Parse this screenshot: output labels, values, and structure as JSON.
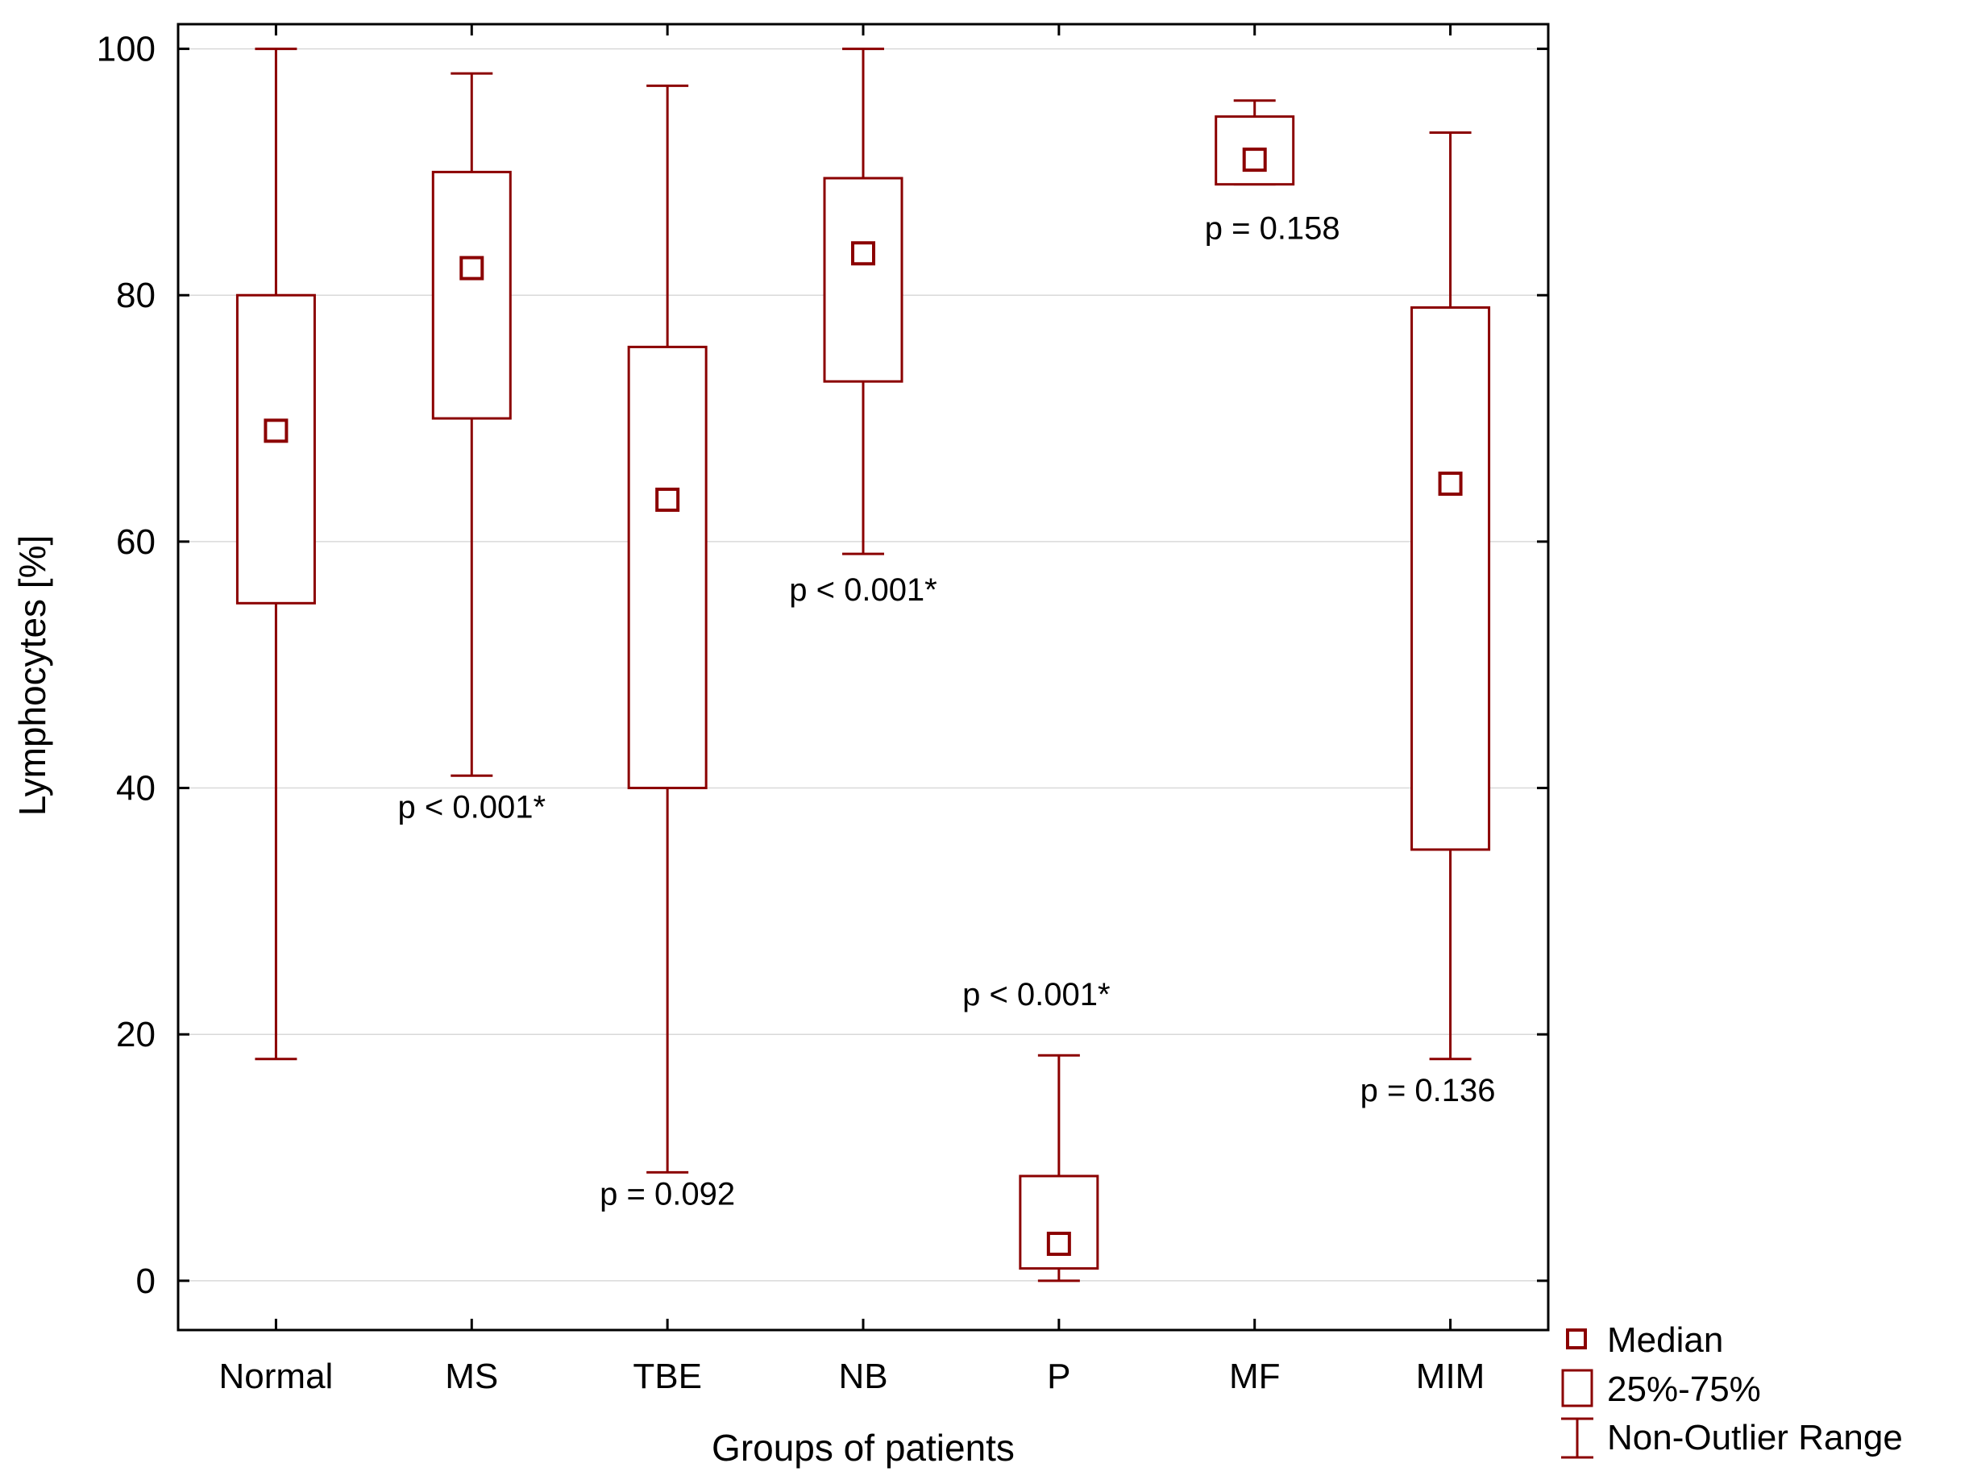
{
  "chart_data": {
    "type": "boxplot",
    "xlabel": "Groups of patients",
    "ylabel": "Lymphocytes [%]",
    "ylim": [
      -4,
      102
    ],
    "yticks": [
      0,
      20,
      40,
      60,
      80,
      100
    ],
    "grid": true,
    "legend_position": "bottom-right",
    "legend": [
      "Median",
      "25%-75%",
      "Non-Outlier Range"
    ],
    "color": "#8b0000",
    "categories": [
      "Normal",
      "MS",
      "TBE",
      "NB",
      "P",
      "MF",
      "MIM"
    ],
    "groups": [
      {
        "name": "Normal",
        "min": 18,
        "q1": 55,
        "median": 69,
        "q3": 80,
        "max": 100,
        "annotation": ""
      },
      {
        "name": "MS",
        "min": 41,
        "q1": 70,
        "median": 82.2,
        "q3": 90,
        "max": 98,
        "annotation": "p < 0.001*"
      },
      {
        "name": "TBE",
        "min": 8.8,
        "q1": 40,
        "median": 63.4,
        "q3": 75.8,
        "max": 97,
        "annotation": "p = 0.092"
      },
      {
        "name": "NB",
        "min": 59,
        "q1": 73,
        "median": 83.4,
        "q3": 89.5,
        "max": 100,
        "annotation": "p < 0.001*"
      },
      {
        "name": "P",
        "min": 0,
        "q1": 1,
        "median": 3,
        "q3": 8.5,
        "max": 18.3,
        "annotation": "p < 0.001*"
      },
      {
        "name": "MF",
        "min": 89,
        "q1": 89,
        "median": 91,
        "q3": 94.5,
        "max": 95.8,
        "annotation": "p = 0.158"
      },
      {
        "name": "MIM",
        "min": 18,
        "q1": 35,
        "median": 64.7,
        "q3": 79,
        "max": 93.2,
        "annotation": "p = 0.136"
      }
    ]
  }
}
